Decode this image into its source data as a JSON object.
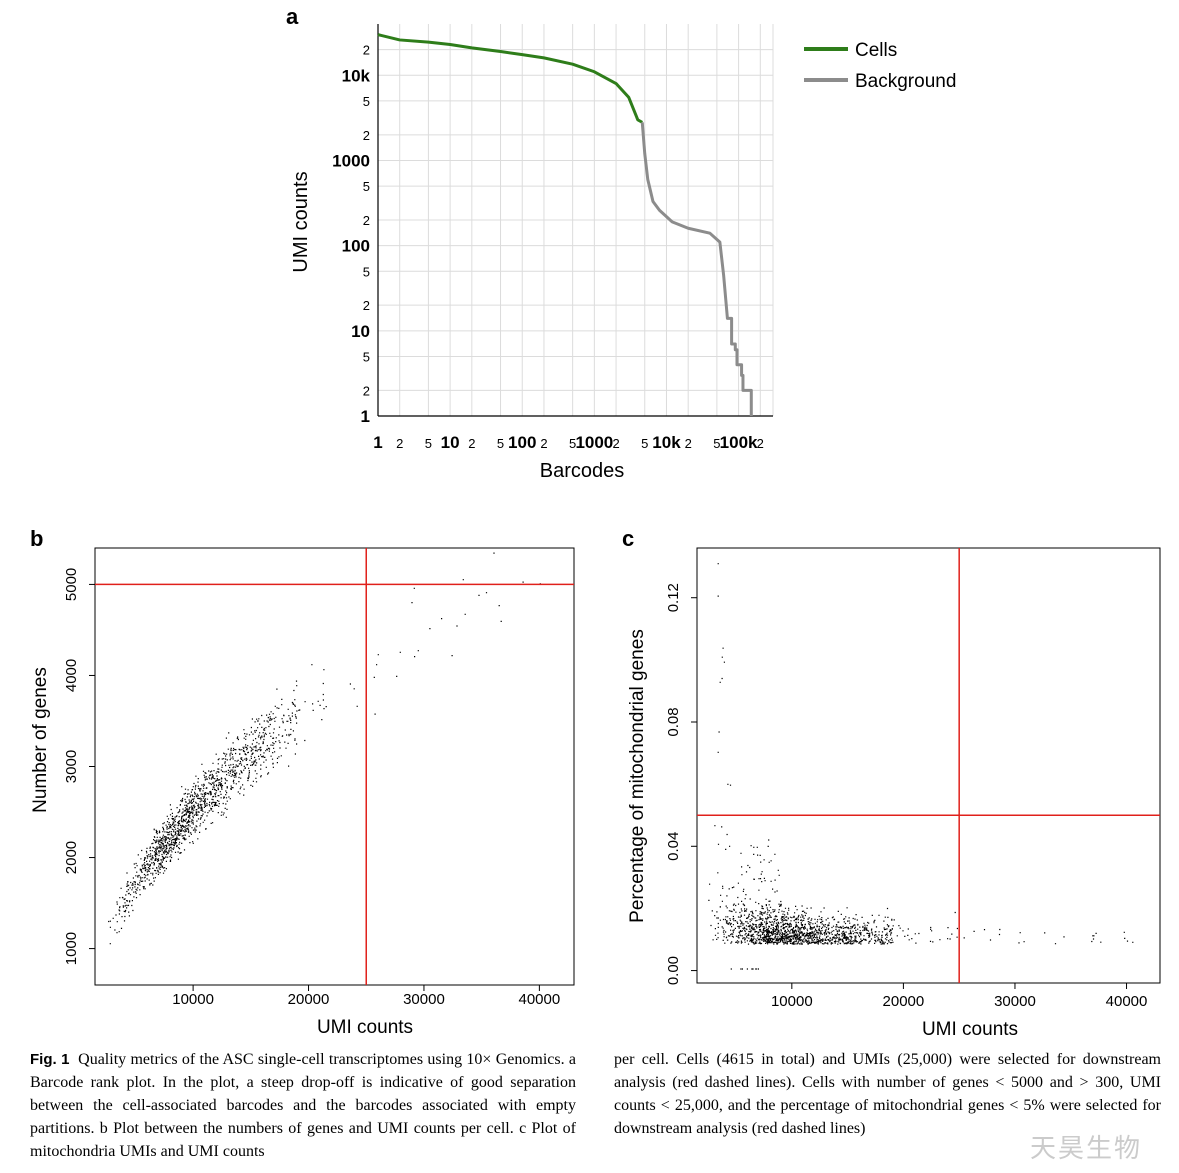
{
  "panels": {
    "a_letter": "a",
    "b_letter": "b",
    "c_letter": "c"
  },
  "colors": {
    "cells": "#2e7d1a",
    "background": "#8c8c8c",
    "grid": "#dcdcdc",
    "threshold": "#e0201b",
    "points": "#000000"
  },
  "chart_data": [
    {
      "id": "a",
      "type": "line",
      "scale": "log-log",
      "xlabel": "Barcodes",
      "ylabel": "UMI counts",
      "xlim": [
        1,
        300000
      ],
      "ylim": [
        1,
        40000
      ],
      "x_tick_labels": [
        {
          "v": 1,
          "t": "1",
          "major": true
        },
        {
          "v": 2,
          "t": "2"
        },
        {
          "v": 5,
          "t": "5"
        },
        {
          "v": 10,
          "t": "10",
          "major": true
        },
        {
          "v": 20,
          "t": "2"
        },
        {
          "v": 50,
          "t": "5"
        },
        {
          "v": 100,
          "t": "100",
          "major": true
        },
        {
          "v": 200,
          "t": "2"
        },
        {
          "v": 500,
          "t": "5"
        },
        {
          "v": 1000,
          "t": "1000",
          "major": true
        },
        {
          "v": 2000,
          "t": "2"
        },
        {
          "v": 5000,
          "t": "5"
        },
        {
          "v": 10000,
          "t": "10k",
          "major": true
        },
        {
          "v": 20000,
          "t": "2"
        },
        {
          "v": 50000,
          "t": "5"
        },
        {
          "v": 100000,
          "t": "100k",
          "major": true
        },
        {
          "v": 200000,
          "t": "2"
        }
      ],
      "y_tick_labels": [
        {
          "v": 1,
          "t": "1",
          "major": true
        },
        {
          "v": 2,
          "t": "2"
        },
        {
          "v": 5,
          "t": "5"
        },
        {
          "v": 10,
          "t": "10",
          "major": true
        },
        {
          "v": 20,
          "t": "2"
        },
        {
          "v": 50,
          "t": "5"
        },
        {
          "v": 100,
          "t": "100",
          "major": true
        },
        {
          "v": 200,
          "t": "2"
        },
        {
          "v": 500,
          "t": "5"
        },
        {
          "v": 1000,
          "t": "1000",
          "major": true
        },
        {
          "v": 2000,
          "t": "2"
        },
        {
          "v": 5000,
          "t": "5"
        },
        {
          "v": 10000,
          "t": "10k",
          "major": true
        },
        {
          "v": 20000,
          "t": "2"
        }
      ],
      "legend": {
        "position": "top-right",
        "entries": [
          "Cells",
          "Background"
        ]
      },
      "grid": true,
      "series": [
        {
          "name": "Cells",
          "points": [
            [
              1,
              30000
            ],
            [
              2,
              26000
            ],
            [
              5,
              24500
            ],
            [
              10,
              23000
            ],
            [
              20,
              21000
            ],
            [
              50,
              19000
            ],
            [
              100,
              17500
            ],
            [
              200,
              16000
            ],
            [
              500,
              13500
            ],
            [
              1000,
              11000
            ],
            [
              2000,
              8000
            ],
            [
              3000,
              5500
            ],
            [
              4000,
              3000
            ],
            [
              4615,
              2800
            ]
          ]
        },
        {
          "name": "Background",
          "points": [
            [
              4615,
              2800
            ],
            [
              5000,
              1200
            ],
            [
              5500,
              600
            ],
            [
              6500,
              330
            ],
            [
              8000,
              260
            ],
            [
              12000,
              190
            ],
            [
              20000,
              160
            ],
            [
              40000,
              140
            ],
            [
              55000,
              110
            ],
            [
              62000,
              45
            ],
            [
              70000,
              14
            ],
            [
              80000,
              7
            ],
            [
              90000,
              6
            ],
            [
              95000,
              4
            ],
            [
              110000,
              3
            ],
            [
              115000,
              2
            ],
            [
              140000,
              2
            ],
            [
              150000,
              1
            ]
          ]
        }
      ]
    },
    {
      "id": "b",
      "type": "scatter",
      "xlabel": "UMI counts",
      "ylabel": "Number of genes",
      "xlim": [
        1500,
        43000
      ],
      "ylim": [
        600,
        5400
      ],
      "x_ticks": [
        10000,
        20000,
        30000,
        40000
      ],
      "y_ticks": [
        1000,
        2000,
        3000,
        4000,
        5000
      ],
      "threshold_lines": {
        "x": 25000,
        "y": 5000
      },
      "grid": false,
      "n_points": 4615,
      "trend": [
        [
          2500,
          1100
        ],
        [
          5000,
          1750
        ],
        [
          10000,
          2550
        ],
        [
          15000,
          3150
        ],
        [
          20000,
          3650
        ],
        [
          25000,
          4050
        ],
        [
          30000,
          4450
        ],
        [
          40000,
          5100
        ]
      ]
    },
    {
      "id": "c",
      "type": "scatter",
      "xlabel": "UMI counts",
      "ylabel": "Percentage of mitochondrial genes",
      "xlim": [
        1500,
        43000
      ],
      "ylim": [
        -0.004,
        0.136
      ],
      "x_ticks": [
        10000,
        20000,
        30000,
        40000
      ],
      "y_ticks": [
        "0.00",
        "0.04",
        "0.08",
        "0.12"
      ],
      "threshold_lines": {
        "x": 25000,
        "y": 0.05
      },
      "grid": false,
      "n_points": 4615
    }
  ],
  "caption": {
    "fig_label": "Fig. 1",
    "col1": "Quality metrics of the ASC single-cell transcriptomes using 10× Genomics. a Barcode rank plot. In the plot, a steep drop-off is indicative of good separation between the cell-associated barcodes and the barcodes associated with empty partitions. b Plot between the numbers of genes and UMI counts per cell. c Plot of mitochondria UMIs and UMI counts",
    "col2": "per cell. Cells (4615 in total) and UMIs (25,000) were selected for downstream analysis (red dashed lines). Cells with number of genes < 5000 and > 300, UMI counts < 25,000, and the percentage of mitochondrial genes < 5% were selected for downstream analysis (red dashed lines)"
  },
  "watermark": "天昊生物"
}
